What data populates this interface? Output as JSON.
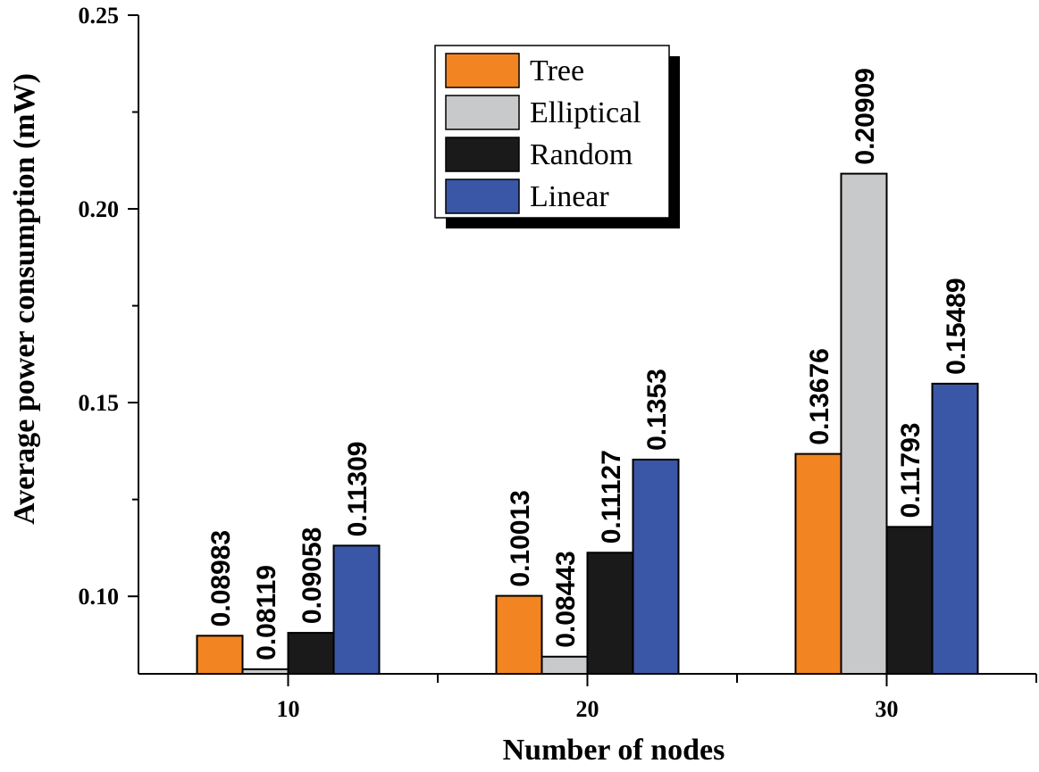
{
  "chart_data": {
    "type": "bar",
    "title": "",
    "xlabel": "Number of nodes",
    "ylabel": "Average power consumption (mW)",
    "categories": [
      "10",
      "20",
      "30"
    ],
    "ylim": [
      0.08,
      0.25
    ],
    "yticks": [
      0.1,
      0.15,
      0.2,
      0.25
    ],
    "ytick_labels": [
      "0.10",
      "0.15",
      "0.20",
      "0.25"
    ],
    "legend_position": "top-center",
    "series": [
      {
        "name": "Tree",
        "color": "#f28522",
        "values": [
          0.08983,
          0.10013,
          0.13676
        ],
        "labels": [
          "0.08983",
          "0.10013",
          "0.13676"
        ]
      },
      {
        "name": "Elliptical",
        "color": "#c8c9cb",
        "values": [
          0.08119,
          0.08443,
          0.20909
        ],
        "labels": [
          "0.08119",
          "0.08443",
          "0.20909"
        ]
      },
      {
        "name": "Random",
        "color": "#1a1a1a",
        "values": [
          0.09058,
          0.11127,
          0.11793
        ],
        "labels": [
          "0.09058",
          "0.11127",
          "0.11793"
        ]
      },
      {
        "name": "Linear",
        "color": "#3a56a6",
        "values": [
          0.11309,
          0.1353,
          0.15489
        ],
        "labels": [
          "0.11309",
          "0.1353",
          "0.15489"
        ]
      }
    ]
  }
}
